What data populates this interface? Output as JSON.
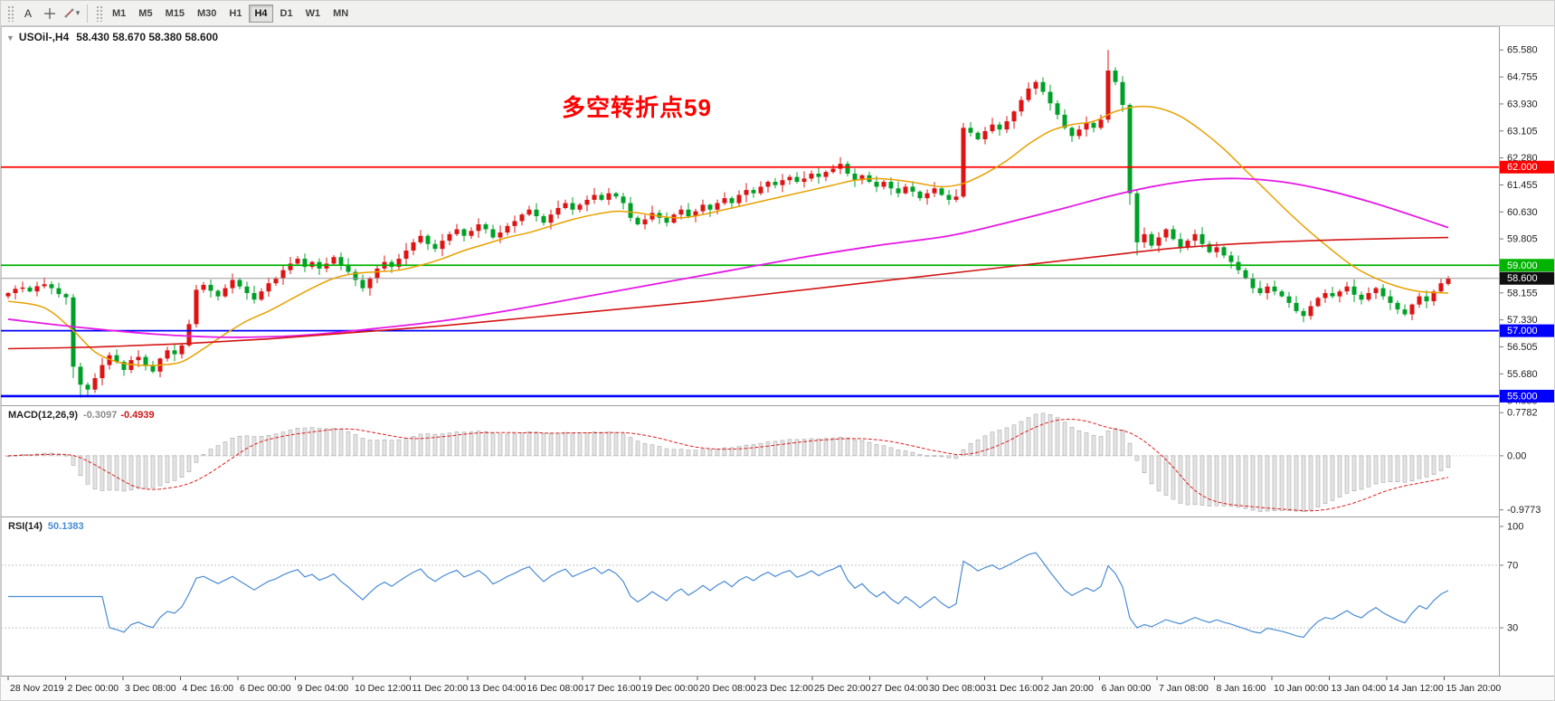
{
  "toolbar": {
    "cursor_label": "A",
    "timeframes": [
      "M1",
      "M5",
      "M15",
      "M30",
      "H1",
      "H4",
      "D1",
      "W1",
      "MN"
    ],
    "active_timeframe": "H4"
  },
  "chart": {
    "symbol": "USOil-,H4",
    "ohlc": "58.430 58.670 58.380 58.600",
    "annotation": {
      "text": "多空转折点59",
      "color": "#ff0000"
    },
    "colors": {
      "candle_up": "#dc1414",
      "candle_down": "#00a028",
      "ma_fast": "#e8a000",
      "ma_mid": "#e619e6",
      "ma_slow": "#d41414",
      "macd_hist": "#e4e4e4",
      "macd_hist_stroke": "#9a9a9a",
      "macd_signal": "#dd2020",
      "rsi_line": "#4a8bd4",
      "level_line": "#c4c4c4",
      "current_price_line": "#9a9a9a"
    },
    "price_axis": {
      "ticks": [
        {
          "label": "65.580",
          "value": 65.58
        },
        {
          "label": "64.755",
          "value": 64.755
        },
        {
          "label": "63.930",
          "value": 63.93
        },
        {
          "label": "63.105",
          "value": 63.105
        },
        {
          "label": "62.280",
          "value": 62.28
        },
        {
          "label": "61.455",
          "value": 61.455
        },
        {
          "label": "60.630",
          "value": 60.63
        },
        {
          "label": "59.805",
          "value": 59.805
        },
        {
          "label": "58.155",
          "value": 58.155
        },
        {
          "label": "57.330",
          "value": 57.33
        },
        {
          "label": "56.505",
          "value": 56.505
        },
        {
          "label": "55.680",
          "value": 55.68
        },
        {
          "label": "54.855",
          "value": 54.855
        }
      ]
    },
    "hlines": [
      {
        "label": "62.000",
        "value": 62.0,
        "color": "#ff0000",
        "thickness": 1.8
      },
      {
        "label": "59.000",
        "value": 59.0,
        "color": "#00b400",
        "thickness": 1.8
      },
      {
        "label": "57.000",
        "value": 57.0,
        "color": "#0000ff",
        "thickness": 1.8
      },
      {
        "label": "55.000",
        "value": 55.0,
        "color": "#0000ff",
        "thickness": 2.6
      }
    ],
    "current_price": {
      "label": "58.600",
      "value": 58.6
    },
    "time_axis": {
      "labels": [
        "28 Nov 2019",
        "2 Dec 00:00",
        "3 Dec 08:00",
        "4 Dec 16:00",
        "6 Dec 00:00",
        "9 Dec 04:00",
        "10 Dec 12:00",
        "11 Dec 20:00",
        "13 Dec 04:00",
        "16 Dec 08:00",
        "17 Dec 16:00",
        "19 Dec 00:00",
        "20 Dec 08:00",
        "23 Dec 12:00",
        "25 Dec 20:00",
        "27 Dec 04:00",
        "30 Dec 08:00",
        "31 Dec 16:00",
        "2 Jan 20:00",
        "6 Jan 00:00",
        "7 Jan 08:00",
        "8 Jan 16:00",
        "10 Jan 00:00",
        "13 Jan 04:00",
        "14 Jan 12:00",
        "15 Jan 20:00"
      ]
    }
  },
  "chart_data": {
    "type": "candlestick",
    "symbol": "USOil-",
    "timeframe": "H4",
    "first_open": 58.05,
    "closes": [
      58.15,
      58.28,
      58.32,
      58.2,
      58.36,
      58.42,
      58.3,
      58.12,
      58.02,
      55.9,
      55.35,
      55.2,
      55.55,
      55.95,
      56.25,
      56.05,
      55.8,
      56.1,
      56.2,
      55.92,
      55.75,
      56.15,
      56.4,
      56.28,
      56.55,
      57.2,
      58.25,
      58.4,
      58.22,
      58.05,
      58.3,
      58.55,
      58.35,
      58.15,
      57.95,
      58.2,
      58.45,
      58.6,
      58.85,
      59.05,
      59.2,
      58.95,
      59.1,
      58.9,
      59.05,
      59.25,
      59.0,
      58.8,
      58.55,
      58.3,
      58.6,
      58.9,
      59.1,
      58.95,
      59.2,
      59.45,
      59.7,
      59.9,
      59.65,
      59.5,
      59.75,
      59.95,
      60.1,
      59.9,
      60.05,
      60.25,
      60.1,
      59.85,
      60.0,
      60.2,
      60.35,
      60.55,
      60.7,
      60.5,
      60.3,
      60.55,
      60.75,
      60.9,
      60.7,
      60.85,
      61.0,
      61.15,
      61.0,
      61.2,
      61.1,
      60.9,
      60.45,
      60.25,
      60.4,
      60.6,
      60.45,
      60.3,
      60.55,
      60.7,
      60.5,
      60.65,
      60.85,
      60.7,
      60.9,
      61.05,
      60.9,
      61.15,
      61.3,
      61.2,
      61.4,
      61.55,
      61.45,
      61.6,
      61.7,
      61.55,
      61.65,
      61.8,
      61.7,
      61.85,
      61.95,
      62.1,
      61.8,
      61.6,
      61.75,
      61.55,
      61.4,
      61.55,
      61.35,
      61.2,
      61.4,
      61.25,
      61.05,
      61.2,
      61.35,
      61.15,
      61.0,
      61.1,
      63.2,
      63.05,
      62.85,
      63.1,
      63.3,
      63.15,
      63.4,
      63.7,
      64.05,
      64.4,
      64.6,
      64.3,
      63.95,
      63.6,
      63.2,
      62.95,
      63.15,
      63.35,
      63.2,
      63.45,
      64.95,
      64.6,
      63.9,
      61.2,
      59.7,
      59.95,
      59.6,
      59.85,
      60.1,
      59.8,
      59.55,
      59.75,
      59.95,
      59.65,
      59.4,
      59.55,
      59.3,
      59.1,
      58.85,
      58.6,
      58.3,
      58.15,
      58.35,
      58.2,
      58.05,
      57.85,
      57.6,
      57.45,
      57.75,
      58.0,
      58.15,
      58.05,
      58.2,
      58.35,
      58.1,
      57.95,
      58.15,
      58.3,
      58.05,
      57.85,
      57.65,
      57.5,
      57.8,
      58.05,
      57.9,
      58.2,
      58.45,
      58.6
    ],
    "overrides": {
      "9": [
        58.02,
        58.12,
        55.55,
        55.9
      ],
      "10": [
        55.9,
        56.02,
        54.95,
        55.35
      ],
      "26": [
        57.2,
        58.4,
        57.1,
        58.25
      ],
      "132": [
        61.1,
        63.35,
        61.05,
        63.2
      ],
      "152": [
        63.45,
        65.58,
        63.35,
        64.95
      ],
      "155": [
        63.9,
        63.95,
        60.85,
        61.2
      ],
      "156": [
        61.2,
        61.3,
        59.3,
        59.7
      ],
      "199": [
        58.43,
        58.67,
        58.38,
        58.6
      ]
    },
    "ma_fast_orange": [
      [
        0,
        57.9
      ],
      [
        5,
        57.7
      ],
      [
        9,
        57.0
      ],
      [
        12,
        56.35
      ],
      [
        15,
        56.05
      ],
      [
        18,
        55.95
      ],
      [
        21,
        55.95
      ],
      [
        24,
        56.05
      ],
      [
        27,
        56.45
      ],
      [
        30,
        56.9
      ],
      [
        33,
        57.3
      ],
      [
        36,
        57.6
      ],
      [
        39,
        57.95
      ],
      [
        42,
        58.3
      ],
      [
        45,
        58.6
      ],
      [
        48,
        58.75
      ],
      [
        51,
        58.8
      ],
      [
        54,
        58.85
      ],
      [
        57,
        59.0
      ],
      [
        60,
        59.2
      ],
      [
        63,
        59.45
      ],
      [
        66,
        59.65
      ],
      [
        69,
        59.85
      ],
      [
        72,
        60.0
      ],
      [
        75,
        60.2
      ],
      [
        78,
        60.4
      ],
      [
        81,
        60.55
      ],
      [
        84,
        60.65
      ],
      [
        87,
        60.6
      ],
      [
        90,
        60.5
      ],
      [
        93,
        60.45
      ],
      [
        96,
        60.55
      ],
      [
        99,
        60.7
      ],
      [
        102,
        60.85
      ],
      [
        105,
        61.0
      ],
      [
        108,
        61.15
      ],
      [
        111,
        61.3
      ],
      [
        114,
        61.45
      ],
      [
        117,
        61.6
      ],
      [
        120,
        61.65
      ],
      [
        123,
        61.6
      ],
      [
        126,
        61.5
      ],
      [
        129,
        61.4
      ],
      [
        132,
        61.5
      ],
      [
        135,
        61.8
      ],
      [
        138,
        62.2
      ],
      [
        141,
        62.7
      ],
      [
        144,
        63.1
      ],
      [
        147,
        63.3
      ],
      [
        150,
        63.4
      ],
      [
        153,
        63.7
      ],
      [
        156,
        63.85
      ],
      [
        159,
        63.8
      ],
      [
        162,
        63.55
      ],
      [
        165,
        63.1
      ],
      [
        168,
        62.55
      ],
      [
        171,
        61.9
      ],
      [
        174,
        61.25
      ],
      [
        177,
        60.6
      ],
      [
        180,
        60.0
      ],
      [
        183,
        59.45
      ],
      [
        186,
        58.95
      ],
      [
        189,
        58.6
      ],
      [
        192,
        58.35
      ],
      [
        195,
        58.2
      ],
      [
        199,
        58.15
      ]
    ],
    "ma_mid_magenta": [
      [
        0,
        57.35
      ],
      [
        10,
        57.1
      ],
      [
        20,
        56.9
      ],
      [
        30,
        56.8
      ],
      [
        40,
        56.85
      ],
      [
        50,
        57.05
      ],
      [
        60,
        57.3
      ],
      [
        70,
        57.65
      ],
      [
        80,
        58.05
      ],
      [
        90,
        58.45
      ],
      [
        100,
        58.85
      ],
      [
        110,
        59.25
      ],
      [
        120,
        59.6
      ],
      [
        130,
        59.9
      ],
      [
        138,
        60.3
      ],
      [
        146,
        60.75
      ],
      [
        152,
        61.1
      ],
      [
        158,
        61.4
      ],
      [
        164,
        61.6
      ],
      [
        170,
        61.65
      ],
      [
        176,
        61.55
      ],
      [
        182,
        61.3
      ],
      [
        188,
        60.95
      ],
      [
        193,
        60.6
      ],
      [
        199,
        60.15
      ]
    ],
    "ma_slow_red": [
      [
        0,
        56.45
      ],
      [
        12,
        56.5
      ],
      [
        24,
        56.6
      ],
      [
        36,
        56.75
      ],
      [
        48,
        56.95
      ],
      [
        60,
        57.15
      ],
      [
        72,
        57.4
      ],
      [
        84,
        57.65
      ],
      [
        96,
        57.9
      ],
      [
        108,
        58.2
      ],
      [
        120,
        58.5
      ],
      [
        132,
        58.8
      ],
      [
        144,
        59.1
      ],
      [
        152,
        59.3
      ],
      [
        160,
        59.5
      ],
      [
        168,
        59.63
      ],
      [
        176,
        59.72
      ],
      [
        184,
        59.78
      ],
      [
        192,
        59.82
      ],
      [
        199,
        59.85
      ]
    ]
  },
  "macd": {
    "label": "MACD(12,26,9)",
    "value_main": "-0.3097",
    "value_signal": "-0.4939",
    "params": [
      12,
      26,
      9
    ],
    "scale": [
      {
        "label": "0.7782",
        "value": 0.7782
      },
      {
        "label": "0.00",
        "value": 0
      },
      {
        "label": "-0.9773",
        "value": -0.9773
      }
    ]
  },
  "rsi": {
    "label": "RSI(14)",
    "value": "50.1383",
    "period": 14,
    "levels": [
      70,
      30
    ],
    "scale": [
      {
        "label": "100",
        "value": 100
      },
      {
        "label": "70",
        "value": 70
      },
      {
        "label": "30",
        "value": 30
      }
    ]
  }
}
